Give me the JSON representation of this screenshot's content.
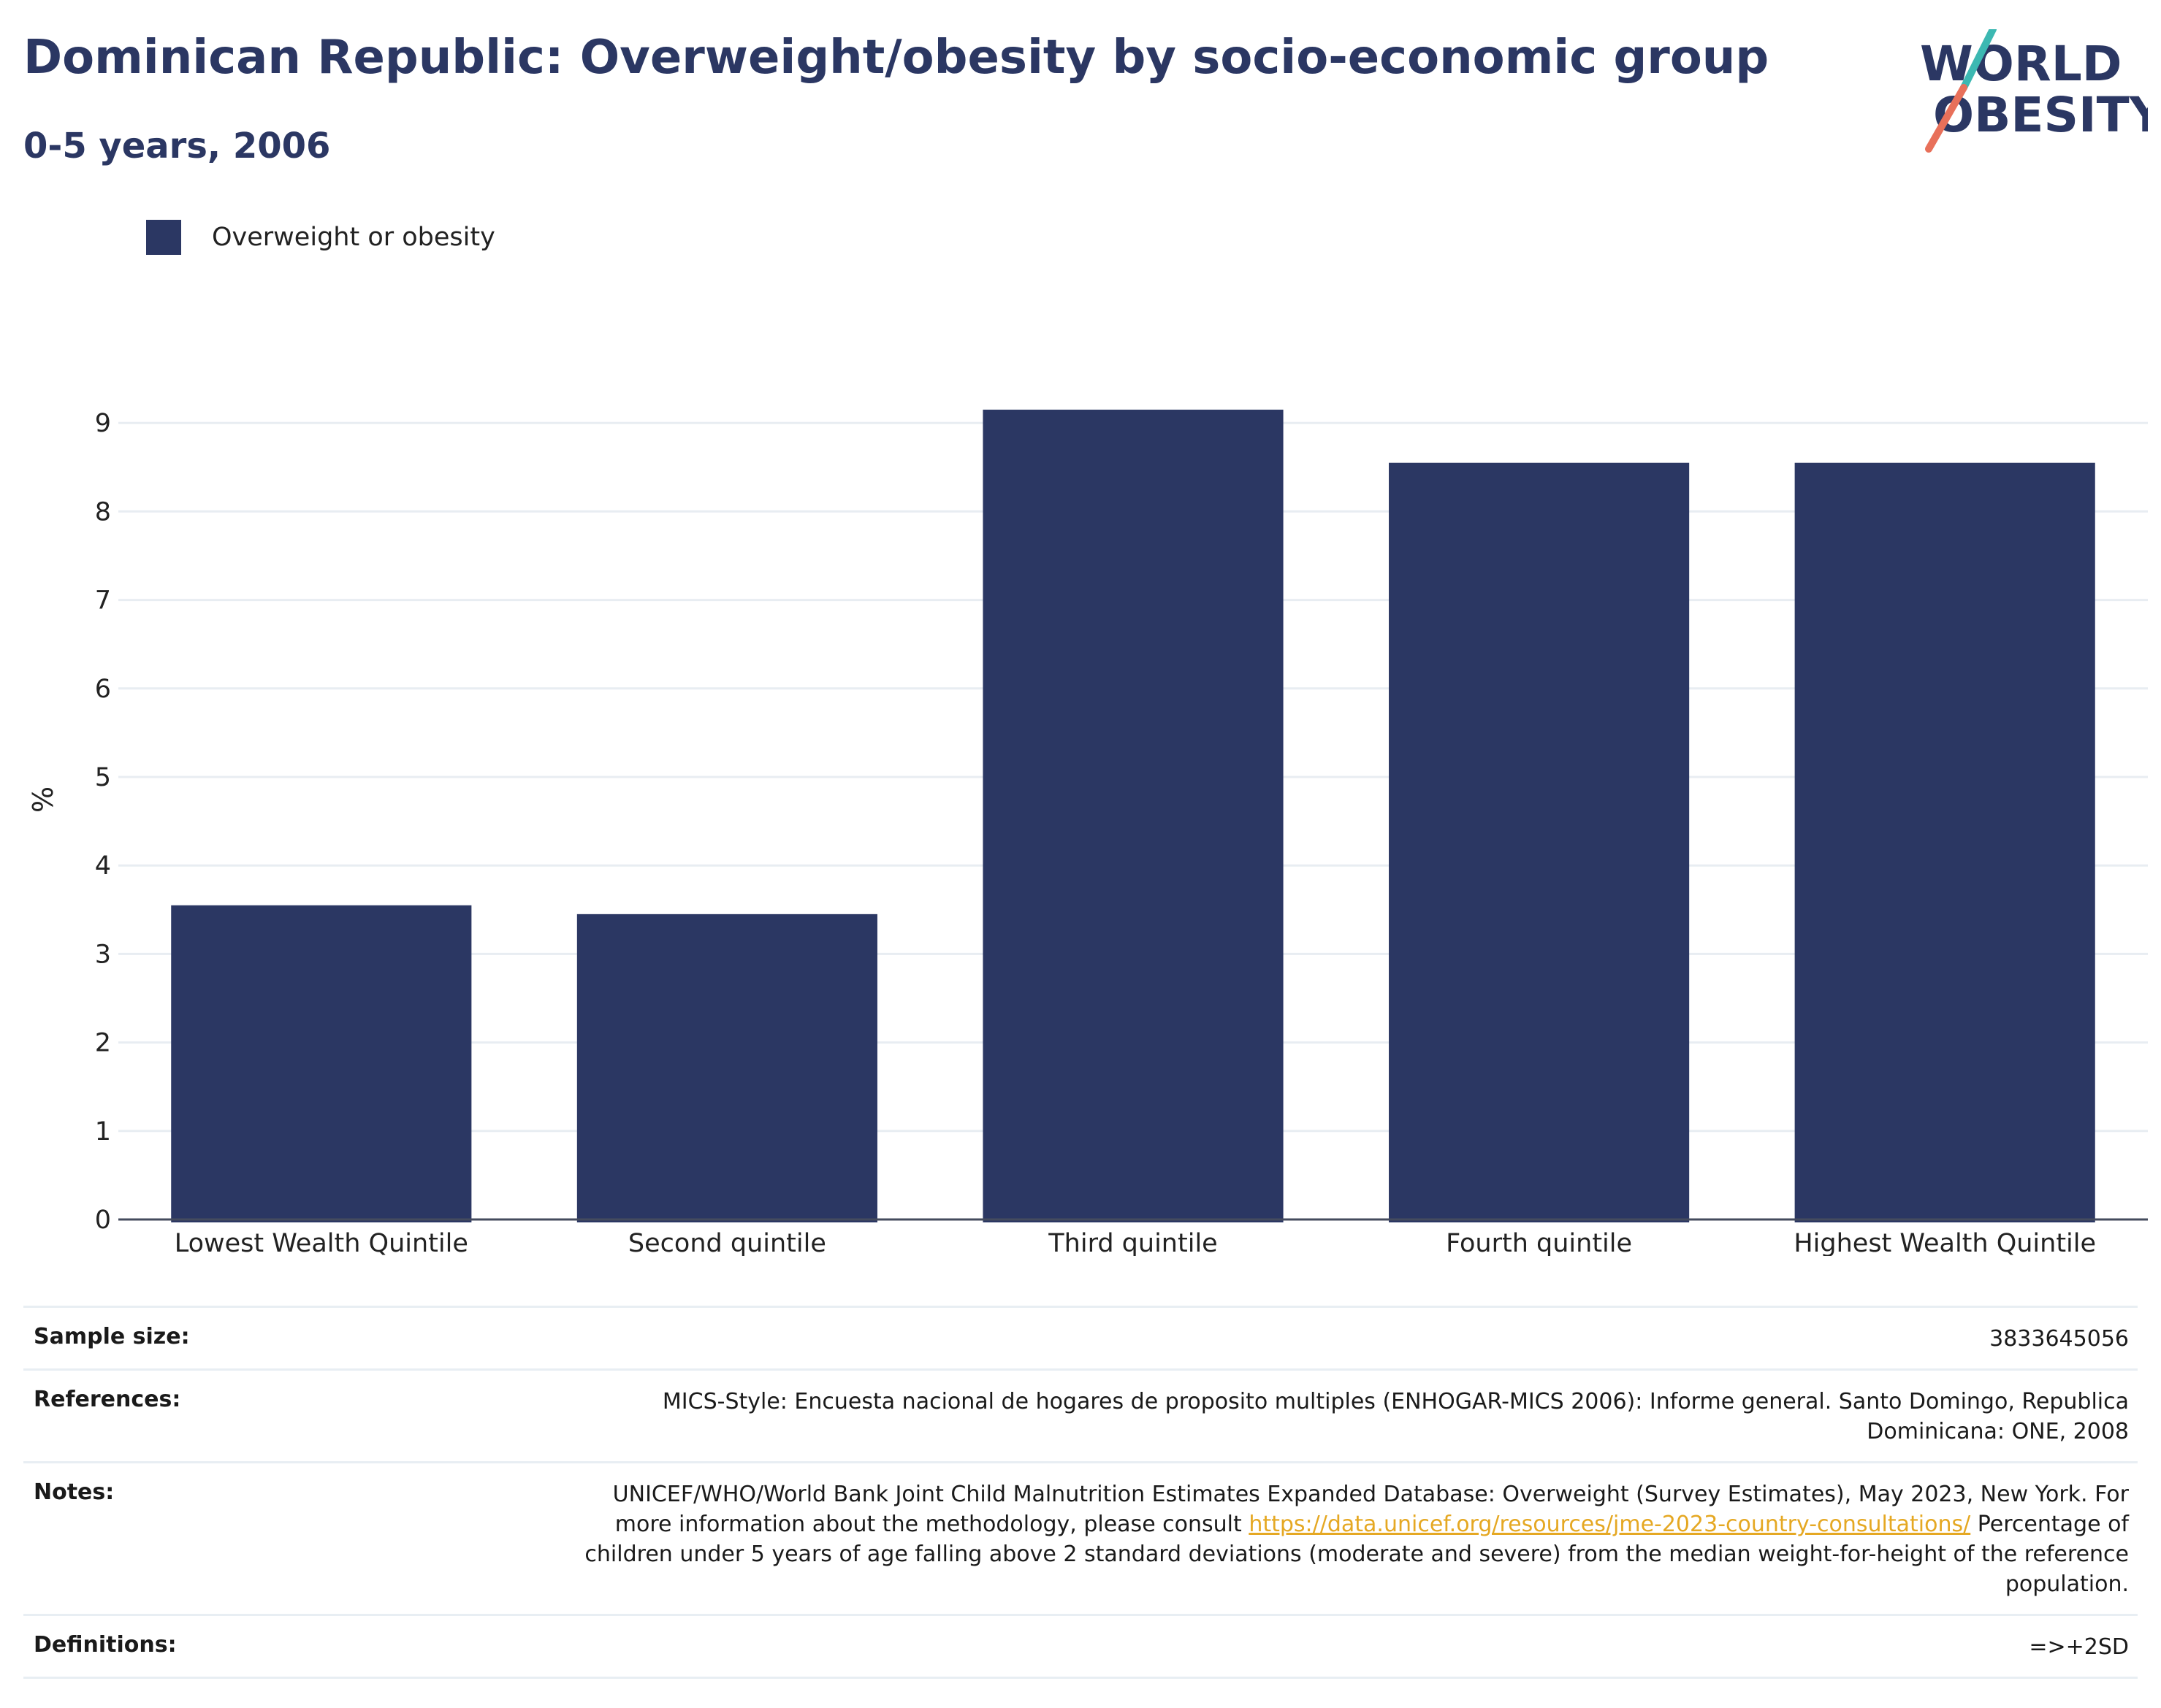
{
  "header": {
    "title": "Dominican Republic: Overweight/obesity by socio-economic group",
    "subtitle": "0-5 years, 2006"
  },
  "logo": {
    "line1": "WORLD",
    "line2": "OBESITY",
    "colors": {
      "text": "#2b3763",
      "slash_teal": "#3cb8b2",
      "slash_coral": "#e8705a"
    }
  },
  "legend": {
    "items": [
      {
        "label": "Overweight or obesity",
        "color": "#2b3763"
      }
    ]
  },
  "chart_data": {
    "type": "bar",
    "title": "Dominican Republic: Overweight/obesity by socio-economic group",
    "subtitle": "0-5 years, 2006",
    "xlabel": "",
    "ylabel": "%",
    "categories": [
      "Lowest Wealth Quintile",
      "Second quintile",
      "Third quintile",
      "Fourth quintile",
      "Highest Wealth Quintile"
    ],
    "series": [
      {
        "name": "Overweight or obesity",
        "values": [
          3.55,
          3.45,
          9.15,
          8.55,
          8.55
        ],
        "color": "#2b3763"
      }
    ],
    "ylim": [
      0,
      9.5
    ],
    "yticks": [
      0,
      1,
      2,
      3,
      4,
      5,
      6,
      7,
      8,
      9
    ],
    "grid": true,
    "legend_position": "top-left"
  },
  "info": {
    "rows": [
      {
        "label": "Sample size:",
        "value": "3833645056"
      },
      {
        "label": "References:",
        "value": "MICS-Style: Encuesta nacional de hogares de proposito multiples (ENHOGAR-MICS 2006): Informe general. Santo Domingo, Republica Dominicana: ONE, 2008"
      },
      {
        "label": "Notes:",
        "value_before": "UNICEF/WHO/World Bank Joint Child Malnutrition Estimates Expanded Database: Overweight (Survey Estimates), May 2023, New York. For more information about the methodology, please consult ",
        "link": "https://data.unicef.org/resources/jme-2023-country-consultations/",
        "value_after": " Percentage of children under 5 years of age falling above 2 standard deviations (moderate and severe) from the median weight-for-height of the reference population."
      },
      {
        "label": "Definitions:",
        "value": "=>+2SD"
      }
    ]
  }
}
